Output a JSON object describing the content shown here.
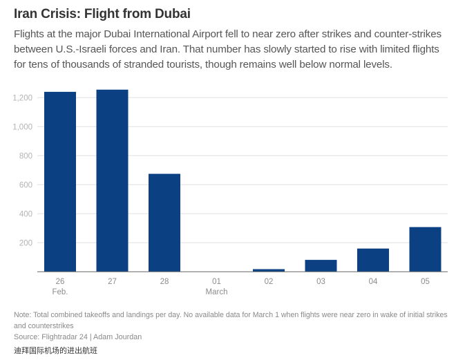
{
  "header": {
    "title": "Iran Crisis: Flight from Dubai",
    "subtitle": "Flights at the major Dubai International Airport fell to near zero after strikes and counter-strikes between U.S.-Israeli forces and Iran. That number has slowly started to rise with limited flights for tens of thousands of stranded tourists, though remains well below normal levels."
  },
  "footer": {
    "note": "Note: Total combined takeoffs and landings per day. No available data for March 1 when flights were near zero in wake of initial strikes and counterstrikes",
    "source": "Source: Flightradar 24 | Adam Jourdan",
    "caption_cn": "迪拜国际机场的进出航班"
  },
  "colors": {
    "bar": "#0b4182",
    "grid": "#e0e0e0",
    "axis": "#777777"
  },
  "chart_data": {
    "type": "bar",
    "title": "Iran Crisis: Flight from Dubai",
    "xlabel": "",
    "ylabel": "",
    "categories": [
      "26",
      "27",
      "28",
      "01",
      "02",
      "03",
      "04",
      "05"
    ],
    "category_sublabels": [
      "Feb.",
      "",
      "",
      "March",
      "",
      "",
      "",
      ""
    ],
    "values": [
      1240,
      1255,
      675,
      null,
      18,
      82,
      160,
      308
    ],
    "ylim": [
      0,
      1260
    ],
    "yticks": [
      200,
      400,
      600,
      800,
      1000,
      1200
    ],
    "ytick_labels": [
      "200",
      "400",
      "600",
      "800",
      "1,000",
      "1,200"
    ],
    "grid": true,
    "legend": "none"
  }
}
